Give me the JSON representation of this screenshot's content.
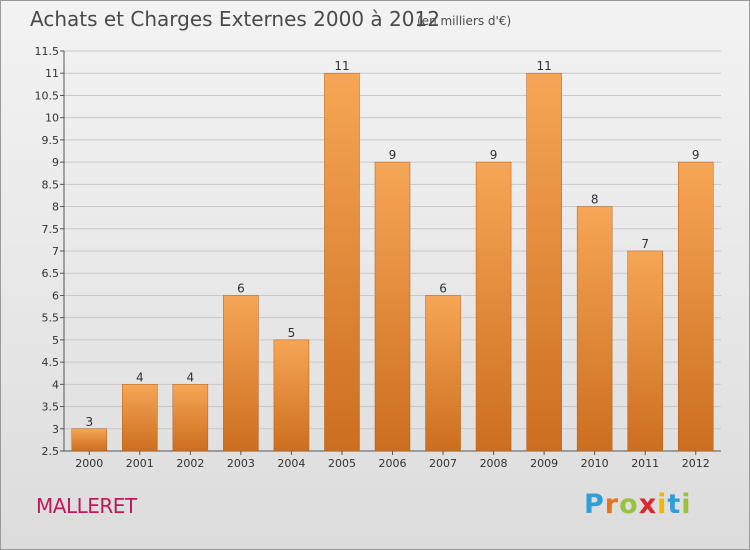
{
  "title": "Achats et Charges Externes 2000 à 2012",
  "subtitle": "(en milliers d'€)",
  "commune": "MALLERET",
  "logo": {
    "letters": [
      "P",
      "r",
      "o",
      "x",
      "i",
      "t",
      "i"
    ],
    "colors": [
      "#2e9fd8",
      "#e8731a",
      "#9bc23c",
      "#d8292f",
      "#f2b705",
      "#2e9fd8",
      "#9bc23c"
    ]
  },
  "colors": {
    "bar_light": "#f6a656",
    "bar_dark": "#cc6e1f",
    "title_text": "#4a4a4a",
    "commune_text": "#c2185b",
    "grid": "#c8c8c8",
    "axis": "#555555"
  },
  "chart_data": {
    "type": "bar",
    "categories": [
      "2000",
      "2001",
      "2002",
      "2003",
      "2004",
      "2005",
      "2006",
      "2007",
      "2008",
      "2009",
      "2010",
      "2011",
      "2012"
    ],
    "values": [
      3,
      4,
      4,
      6,
      5,
      11,
      9,
      6,
      9,
      11,
      8,
      7,
      9
    ],
    "data_labels": [
      "3",
      "4",
      "4",
      "6",
      "5",
      "11",
      "9",
      "6",
      "9",
      "11",
      "8",
      "7",
      "9"
    ],
    "y_ticks": [
      "2.5",
      "3",
      "3.5",
      "4",
      "4.5",
      "5",
      "5.5",
      "6",
      "6.5",
      "7",
      "7.5",
      "8",
      "8.5",
      "9",
      "9.5",
      "10",
      "10.5",
      "11",
      "11.5"
    ],
    "ylim": [
      2.5,
      11.5
    ],
    "grid": true,
    "legend": "none"
  }
}
